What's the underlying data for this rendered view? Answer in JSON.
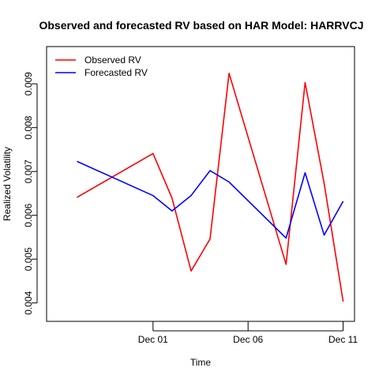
{
  "chart_data": {
    "type": "line",
    "title": "Observed and forecasted RV based on HAR Model: HARRVCJ",
    "xlabel": "Time",
    "ylabel": "Realized Volatility",
    "x": [
      "Nov 27",
      "Nov 28",
      "Nov 29",
      "Nov 30",
      "Dec 01",
      "Dec 02",
      "Dec 03",
      "Dec 04",
      "Dec 05",
      "Dec 06",
      "Dec 07",
      "Dec 08",
      "Dec 09",
      "Dec 10",
      "Dec 11"
    ],
    "xlim": [
      "Nov 26",
      "Dec 11"
    ],
    "ylim": [
      0.00358,
      0.00985
    ],
    "x_ticks": [
      {
        "x": "Dec 01",
        "label": "Dec 01"
      },
      {
        "x": "Dec 06",
        "label": "Dec 06"
      },
      {
        "x": "Dec 11",
        "label": "Dec 11"
      }
    ],
    "y_ticks": [
      {
        "value": 0.004,
        "label": "0.004"
      },
      {
        "value": 0.005,
        "label": "0.005"
      },
      {
        "value": 0.006,
        "label": "0.006"
      },
      {
        "value": 0.007,
        "label": "0.007"
      },
      {
        "value": 0.008,
        "label": "0.008"
      },
      {
        "value": 0.009,
        "label": "0.009"
      }
    ],
    "legend_position": "top-left",
    "series": [
      {
        "name": "Observed RV",
        "color": "#ff0000",
        "points": [
          {
            "x": "Nov 27",
            "y": 0.00641
          },
          {
            "x": "Dec 01",
            "y": 0.00741
          },
          {
            "x": "Dec 02",
            "y": 0.00639
          },
          {
            "x": "Dec 03",
            "y": 0.00473
          },
          {
            "x": "Dec 04",
            "y": 0.00546
          },
          {
            "x": "Dec 05",
            "y": 0.00924
          },
          {
            "x": "Dec 08",
            "y": 0.00488
          },
          {
            "x": "Dec 09",
            "y": 0.00903
          },
          {
            "x": "Dec 10",
            "y": 0.00673
          },
          {
            "x": "Dec 11",
            "y": 0.00403
          }
        ]
      },
      {
        "name": "Forecasted RV",
        "color": "#0000ff",
        "points": [
          {
            "x": "Nov 27",
            "y": 0.00723
          },
          {
            "x": "Dec 01",
            "y": 0.00645
          },
          {
            "x": "Dec 02",
            "y": 0.0061
          },
          {
            "x": "Dec 03",
            "y": 0.00645
          },
          {
            "x": "Dec 04",
            "y": 0.00702
          },
          {
            "x": "Dec 05",
            "y": 0.00676
          },
          {
            "x": "Dec 08",
            "y": 0.00548
          },
          {
            "x": "Dec 09",
            "y": 0.00697
          },
          {
            "x": "Dec 10",
            "y": 0.00555
          },
          {
            "x": "Dec 11",
            "y": 0.00632
          }
        ]
      }
    ]
  }
}
